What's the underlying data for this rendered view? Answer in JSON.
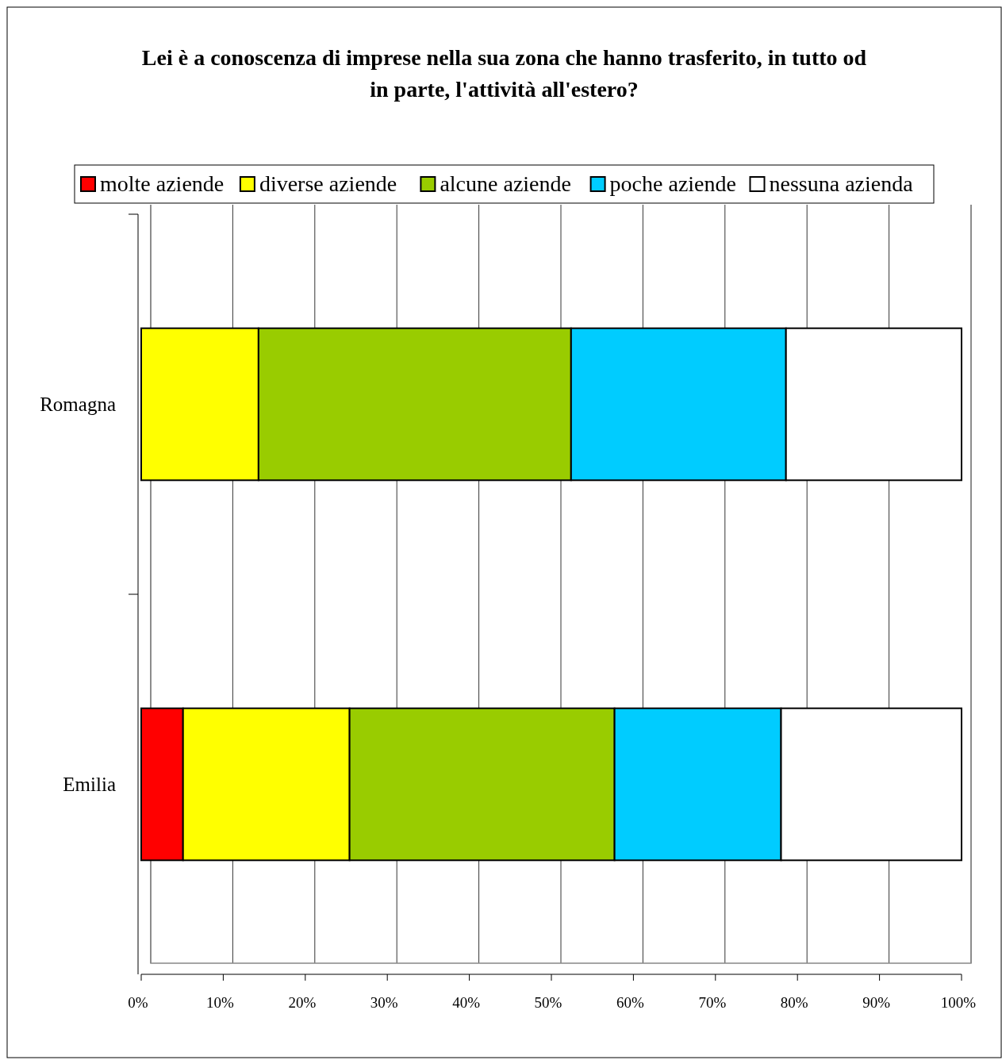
{
  "chart_data": {
    "type": "bar",
    "orientation": "horizontal",
    "stacked": true,
    "title": "Lei è a conoscenza di imprese nella sua zona che hanno trasferito, in tutto od in parte, l'attività all'estero?",
    "categories": [
      "Romagna",
      "Emilia"
    ],
    "series": [
      {
        "name": "molte aziende",
        "color": "#ff0000",
        "values": [
          0,
          5.1
        ]
      },
      {
        "name": "diverse aziende",
        "color": "#ffff00",
        "values": [
          14.3,
          20.3
        ]
      },
      {
        "name": "alcune aziende",
        "color": "#99cc00",
        "values": [
          38.1,
          32.3
        ]
      },
      {
        "name": "poche aziende",
        "color": "#00ccff",
        "values": [
          26.2,
          20.3
        ]
      },
      {
        "name": "nessuna azienda",
        "color": "#ffffff",
        "values": [
          21.4,
          22.0
        ]
      }
    ],
    "xlim": [
      0,
      100
    ],
    "xticks": [
      {
        "value": 0,
        "label": "0%"
      },
      {
        "value": 10,
        "label": "10%"
      },
      {
        "value": 20,
        "label": "20%"
      },
      {
        "value": 30,
        "label": "30%"
      },
      {
        "value": 40,
        "label": "40%"
      },
      {
        "value": 50,
        "label": "50%"
      },
      {
        "value": 60,
        "label": "60%"
      },
      {
        "value": 70,
        "label": "70%"
      },
      {
        "value": 80,
        "label": "80%"
      },
      {
        "value": 90,
        "label": "90%"
      },
      {
        "value": 100,
        "label": "100%"
      }
    ],
    "grid": "x",
    "legend": "top"
  }
}
